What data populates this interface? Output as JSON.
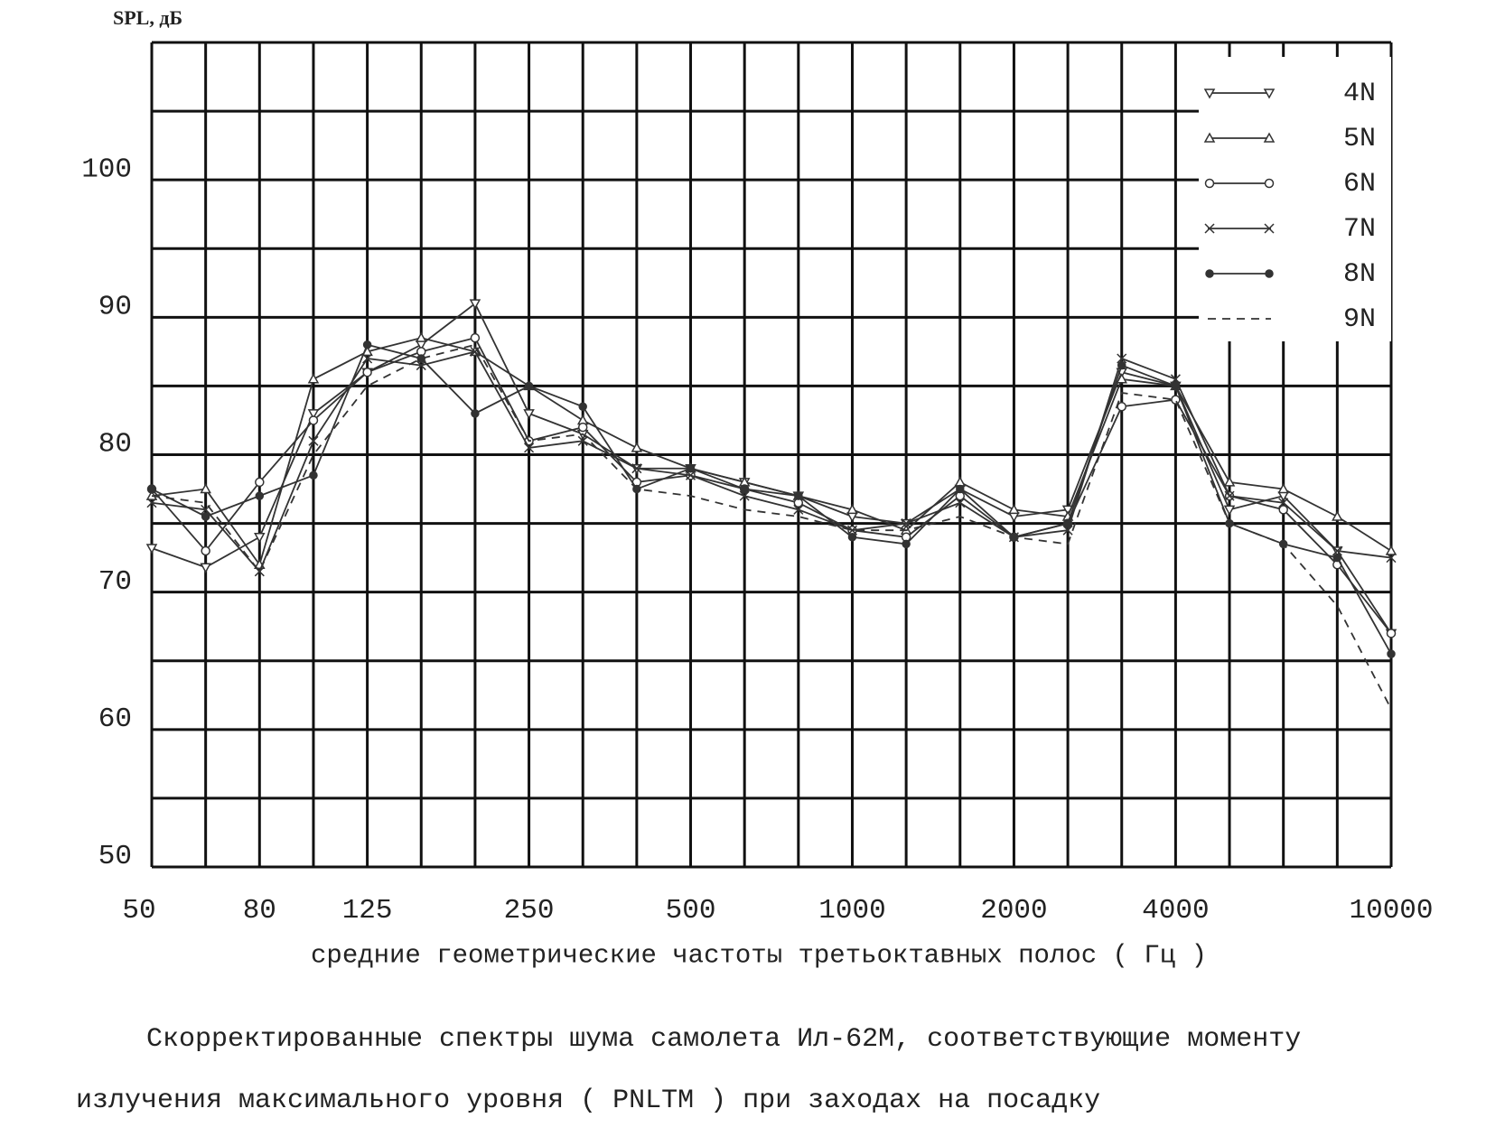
{
  "chart_data": {
    "type": "line",
    "y_label": "SPL, дБ",
    "x_label": "средние геометрические частоты третьоктавных полос ( Гц )",
    "caption": [
      "Скорректированные спектры шума самолета Ил-62М, соответствующие моменту",
      "излучения максимального уровня ( PNLTM ) при заходах на посадку"
    ],
    "categories": [
      "50",
      null,
      "80",
      null,
      "125",
      null,
      null,
      "250",
      null,
      null,
      "500",
      null,
      null,
      "1000",
      null,
      null,
      "2000",
      null,
      null,
      "4000",
      null,
      null,
      null,
      "10000"
    ],
    "ylim": [
      50,
      110
    ],
    "yticks": [
      50,
      60,
      70,
      80,
      90,
      100
    ],
    "grid": true,
    "legend": "upper right",
    "series": [
      {
        "name": "4N",
        "color": "#333333",
        "marker": "triangle-down",
        "dashed": false,
        "values": [
          73.2,
          71.8,
          74,
          83,
          86,
          88,
          91,
          83,
          81.5,
          79,
          79,
          78,
          77,
          75.5,
          75,
          77.5,
          75.5,
          76,
          86,
          85,
          76,
          77,
          73,
          67
        ]
      },
      {
        "name": "5N",
        "color": "#333333",
        "marker": "triangle",
        "dashed": false,
        "values": [
          77,
          77.5,
          72,
          85.5,
          87.5,
          88.5,
          87.5,
          85,
          82.5,
          80.5,
          79,
          78,
          77,
          76,
          74.5,
          78,
          76,
          75.5,
          85.5,
          85,
          78,
          77.5,
          75.5,
          73
        ]
      },
      {
        "name": "6N",
        "color": "#333333",
        "marker": "circle",
        "dashed": false,
        "values": [
          77.5,
          73,
          78,
          82.5,
          86,
          87.5,
          88.5,
          81,
          82,
          78,
          78.5,
          77.5,
          76.5,
          74.5,
          74,
          77,
          74,
          75,
          83.5,
          84,
          77,
          76,
          72,
          67
        ]
      },
      {
        "name": "7N",
        "color": "#333333",
        "marker": "x",
        "dashed": false,
        "values": [
          76.5,
          76,
          71.5,
          81,
          87,
          86.5,
          87.5,
          80.5,
          81,
          79,
          78.5,
          77,
          76,
          74.5,
          75,
          76.5,
          74,
          74.5,
          87,
          85.5,
          77,
          76.5,
          73,
          72.5
        ]
      },
      {
        "name": "8N",
        "color": "#333333",
        "marker": "dot",
        "dashed": false,
        "values": [
          77.5,
          75.5,
          77,
          78.5,
          88,
          87,
          83,
          85,
          83.5,
          77.5,
          79,
          77.5,
          77,
          74,
          73.5,
          77.5,
          74,
          75,
          86.5,
          85,
          75,
          73.5,
          72.5,
          65.5
        ]
      },
      {
        "name": "9N",
        "color": "#333333",
        "marker": "none",
        "dashed": true,
        "values": [
          77,
          76.5,
          71.5,
          80,
          85,
          87,
          88,
          81,
          81.5,
          77.5,
          77,
          76,
          75.5,
          74.5,
          74.5,
          75.5,
          74,
          73.5,
          84.5,
          84,
          75,
          73.5,
          69,
          61.5
        ]
      }
    ]
  }
}
